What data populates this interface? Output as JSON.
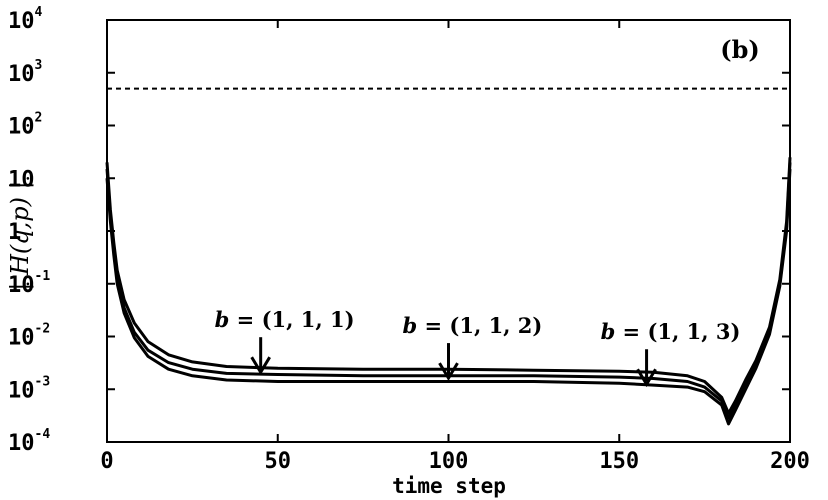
{
  "chart_data": {
    "type": "line",
    "panel_label": "(b)",
    "xlabel": "time step",
    "ylabel": "| H(q,p) |",
    "xlim": [
      0,
      200
    ],
    "ylim": [
      0.0001,
      10000
    ],
    "yscale": "log",
    "x_ticks": [
      {
        "value": 0,
        "label": "0"
      },
      {
        "value": 50,
        "label": "50"
      },
      {
        "value": 100,
        "label": "100"
      },
      {
        "value": 150,
        "label": "150"
      },
      {
        "value": 200,
        "label": "200"
      }
    ],
    "y_ticks": [
      {
        "value": 10000,
        "base": "10",
        "exp": "4"
      },
      {
        "value": 1000,
        "base": "10",
        "exp": "3"
      },
      {
        "value": 100,
        "base": "10",
        "exp": "2"
      },
      {
        "value": 10,
        "base": "10",
        "exp": ""
      },
      {
        "value": 1,
        "base": "1",
        "exp": ""
      },
      {
        "value": 0.1,
        "base": "10",
        "exp": "-1"
      },
      {
        "value": 0.01,
        "base": "10",
        "exp": "-2"
      },
      {
        "value": 0.001,
        "base": "10",
        "exp": "-3"
      },
      {
        "value": 0.0001,
        "base": "10",
        "exp": "-4"
      }
    ],
    "reference_line": {
      "y": 500,
      "style": "dashed"
    },
    "x": [
      0,
      1,
      2,
      3,
      5,
      8,
      12,
      18,
      25,
      35,
      50,
      75,
      100,
      125,
      150,
      160,
      170,
      175,
      180,
      182,
      184,
      187,
      190,
      194,
      197,
      199,
      200
    ],
    "series": [
      {
        "values": [
          20,
          2.5,
          0.6,
          0.18,
          0.05,
          0.018,
          0.008,
          0.0045,
          0.0033,
          0.0027,
          0.0025,
          0.0024,
          0.0024,
          0.0023,
          0.0022,
          0.0021,
          0.0018,
          0.0014,
          0.0007,
          0.00035,
          0.0006,
          0.0015,
          0.0035,
          0.015,
          0.12,
          1.5,
          25
        ]
      },
      {
        "values": [
          15,
          2.0,
          0.45,
          0.13,
          0.035,
          0.012,
          0.0055,
          0.0032,
          0.0024,
          0.002,
          0.0019,
          0.0018,
          0.0018,
          0.0018,
          0.0017,
          0.0016,
          0.0014,
          0.0011,
          0.0006,
          0.00028,
          0.0005,
          0.0013,
          0.003,
          0.013,
          0.1,
          1.2,
          20
        ]
      },
      {
        "values": [
          10,
          1.5,
          0.35,
          0.1,
          0.028,
          0.0095,
          0.0042,
          0.0024,
          0.0018,
          0.0015,
          0.0014,
          0.0014,
          0.0014,
          0.0014,
          0.0013,
          0.0012,
          0.0011,
          0.0009,
          0.0005,
          0.00022,
          0.0004,
          0.001,
          0.0025,
          0.011,
          0.09,
          1.0,
          15
        ]
      }
    ],
    "annotations": [
      {
        "prefix": "b",
        "text": " = (1, 1, 1)",
        "x": 45,
        "y": 0.0022
      },
      {
        "prefix": "b",
        "text": " = (1, 1, 2)",
        "x": 100,
        "y": 0.0017
      },
      {
        "prefix": "b",
        "text": " = (1, 1, 3)",
        "x": 158,
        "y": 0.0013
      }
    ],
    "grid": false,
    "legend": "none"
  }
}
